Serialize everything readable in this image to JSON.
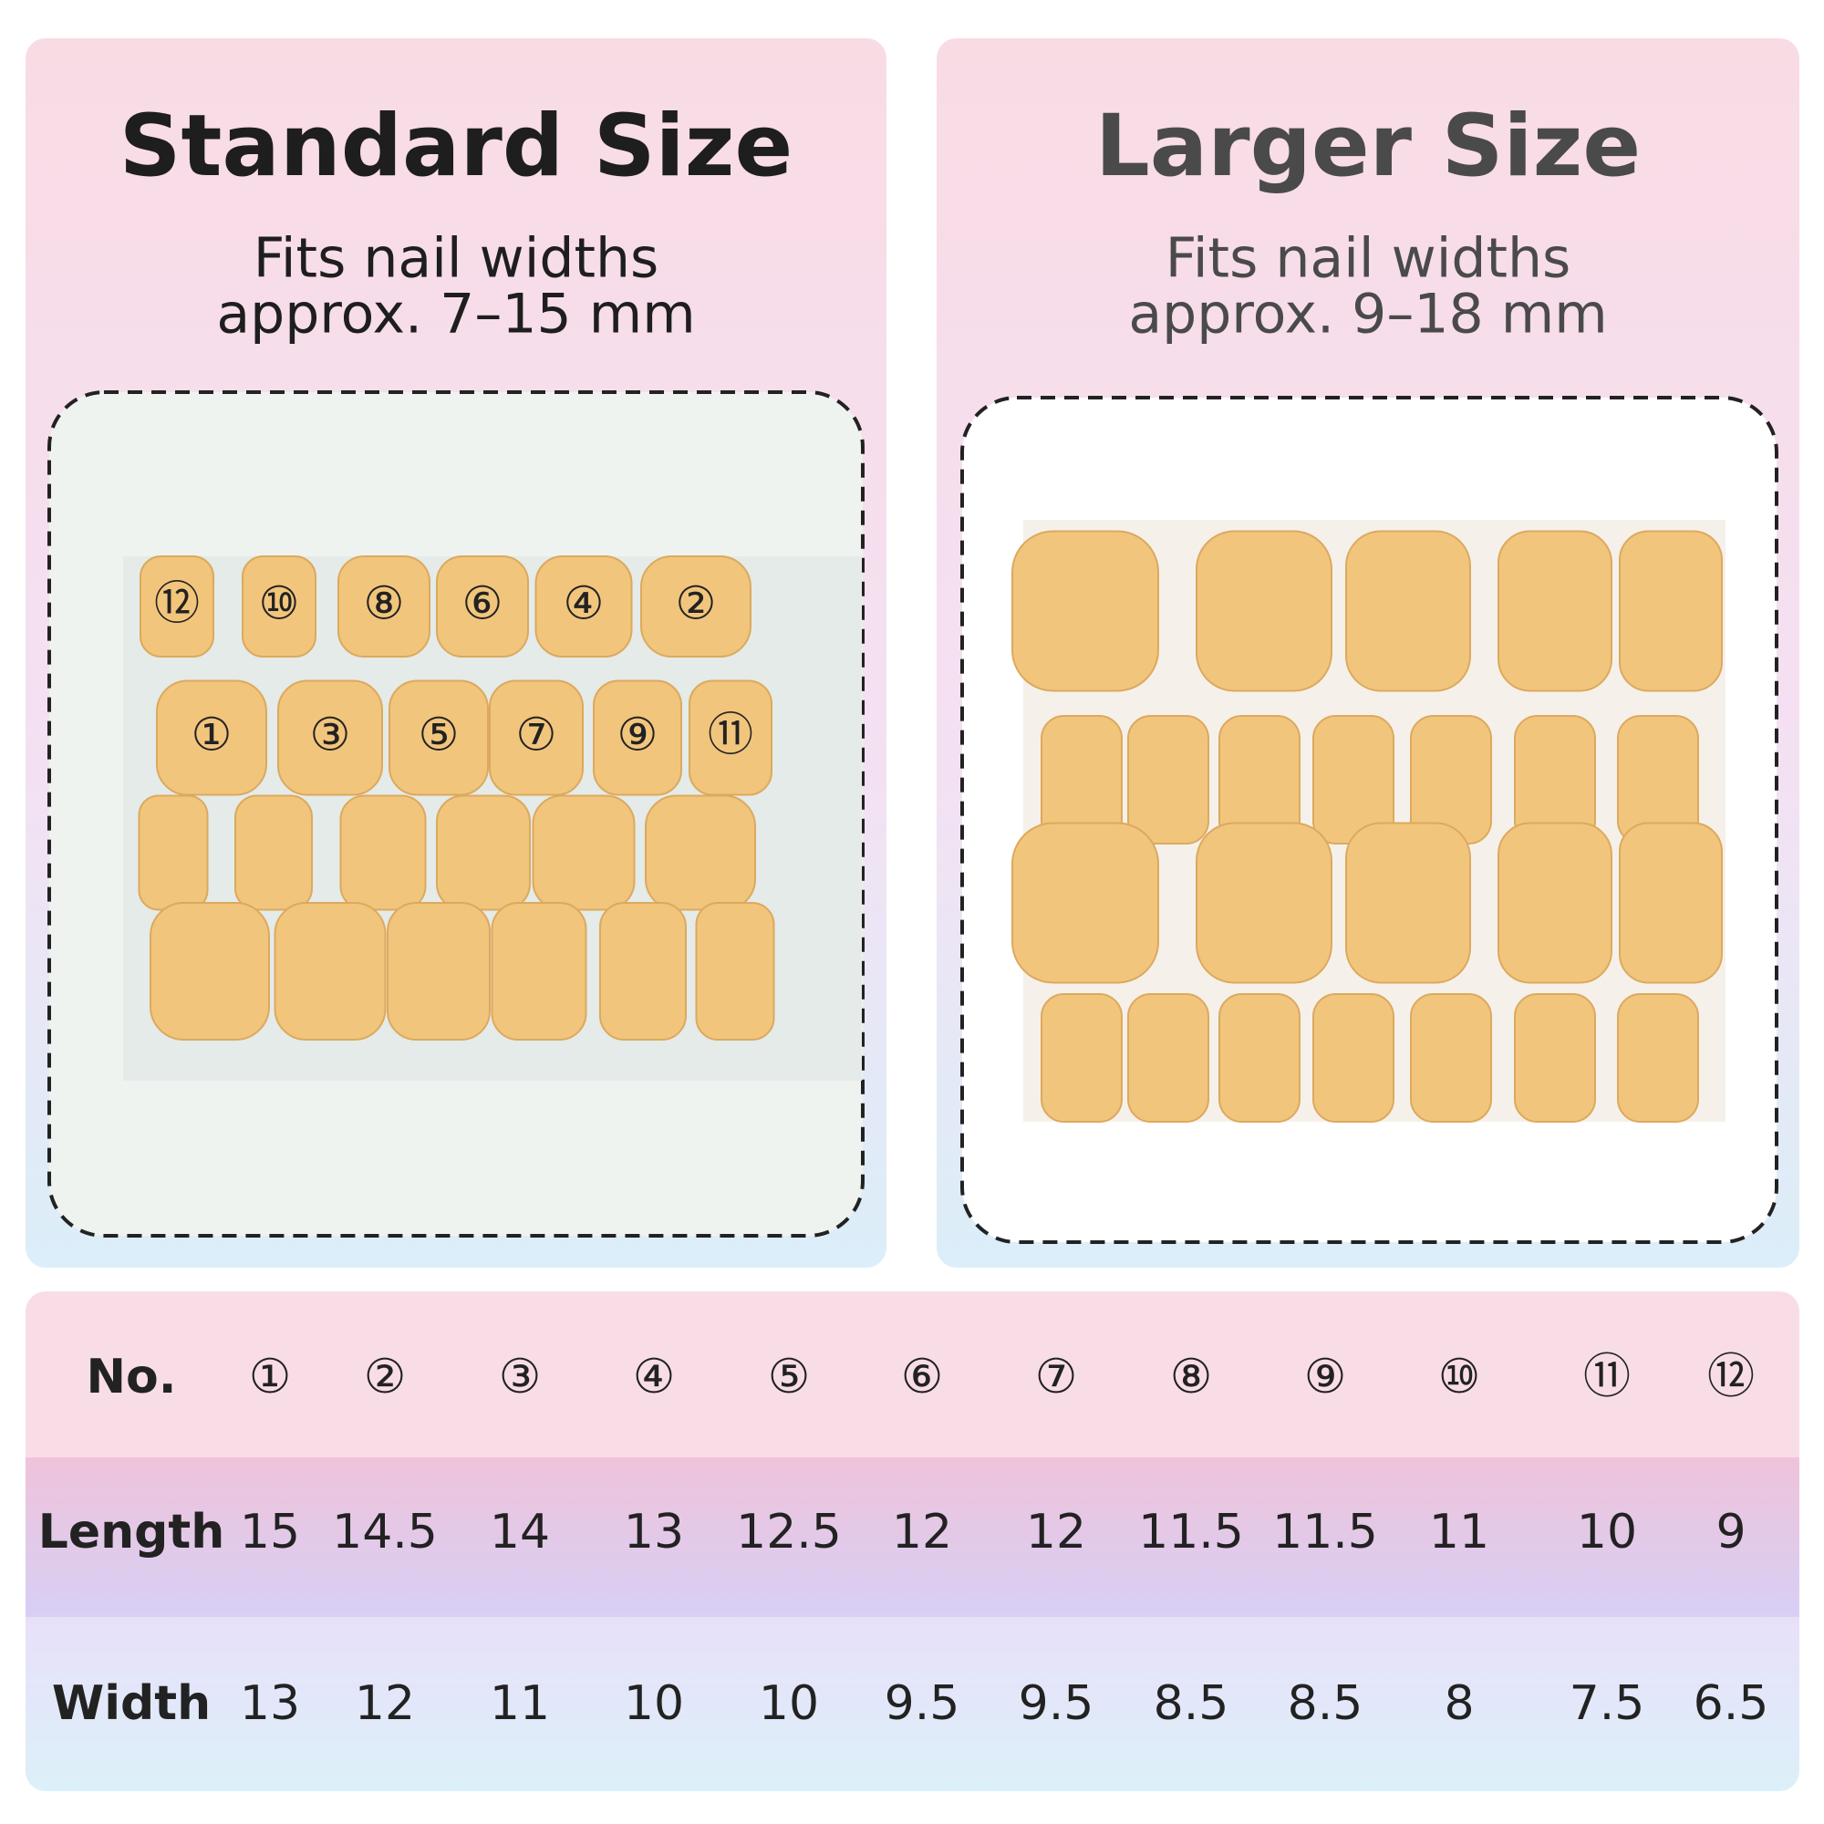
{
  "panels": [
    {
      "title": "Standard Size",
      "subtitle": [
        "Fits nail widths",
        "approx. 7–15 mm"
      ],
      "photo_labels": [
        [
          "⑫",
          "⑩",
          "⑧",
          "⑥",
          "④",
          "②"
        ],
        [
          "①",
          "③",
          "⑤",
          "⑦",
          "⑨",
          "⑪"
        ]
      ]
    },
    {
      "title": "Larger Size",
      "subtitle": [
        "Fits nail widths",
        "approx. 9–18 mm"
      ]
    }
  ],
  "table": {
    "rows": [
      [
        "No.",
        "①",
        "②",
        "③",
        "④",
        "⑤",
        "⑥",
        "⑦",
        "⑧",
        "⑨",
        "⑩",
        "⑪",
        "⑫"
      ],
      [
        "Length",
        15,
        14.5,
        14,
        13,
        12.5,
        12,
        12,
        11.5,
        11.5,
        11,
        10,
        9
      ],
      [
        "Width",
        13,
        12,
        11,
        10,
        10,
        9.5,
        9.5,
        8.5,
        8.5,
        8,
        7.5,
        6.5
      ]
    ]
  }
}
